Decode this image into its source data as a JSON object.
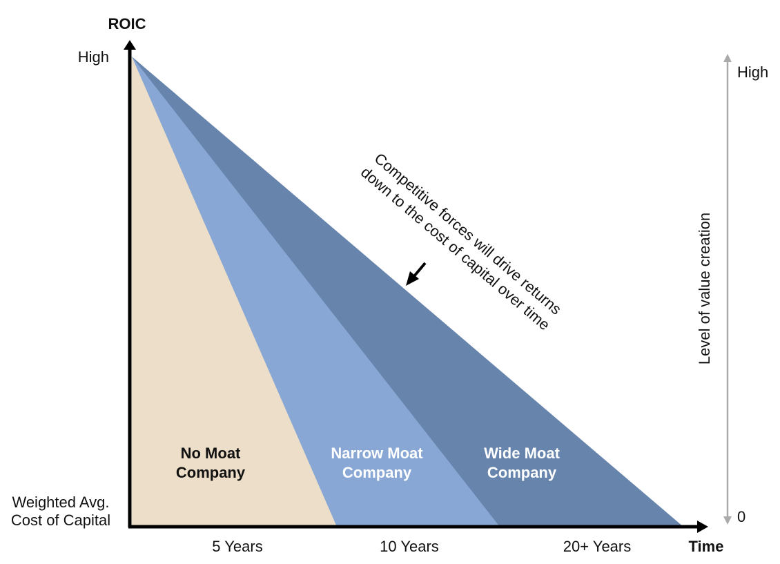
{
  "y_axis": {
    "title": "ROIC",
    "high_label": "High",
    "low_label_line1": "Weighted Avg.",
    "low_label_line2": "Cost of Capital"
  },
  "x_axis": {
    "title": "Time",
    "ticks": [
      "5 Years",
      "10 Years",
      "20+ Years"
    ]
  },
  "right_axis": {
    "title": "Level of value creation",
    "high_label": "High",
    "low_label": "0"
  },
  "regions": [
    {
      "line1": "No Moat",
      "line2": "Company",
      "color": "#ecdec8"
    },
    {
      "line1": "Narrow Moat",
      "line2": "Company",
      "color": "#88a7d4"
    },
    {
      "line1": "Wide Moat",
      "line2": "Company",
      "color": "#6784ad"
    }
  ],
  "annotation": {
    "line1": "Competitive forces will drive returns",
    "line2": "down to the cost of capital over time"
  },
  "colors": {
    "axis": "#000000",
    "right_axis": "#aaaaaa"
  }
}
